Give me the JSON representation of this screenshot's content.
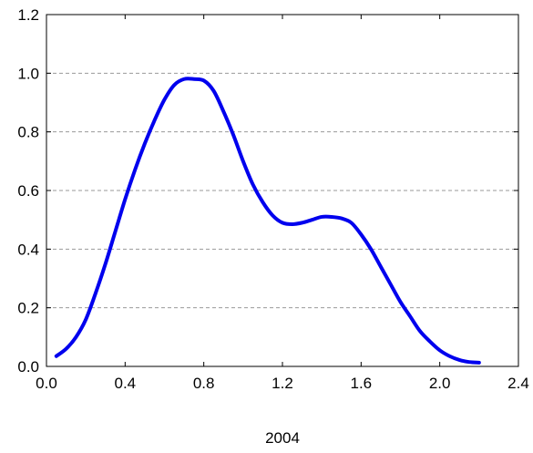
{
  "chart_data": {
    "type": "line",
    "title": "",
    "xlabel": "2004",
    "ylabel": "",
    "xlim": [
      0.0,
      2.4
    ],
    "ylim": [
      0.0,
      1.2
    ],
    "xticks": [
      "0.0",
      "0.4",
      "0.8",
      "1.2",
      "1.6",
      "2.0",
      "2.4"
    ],
    "yticks": [
      "0.0",
      "0.2",
      "0.4",
      "0.6",
      "0.8",
      "1.0",
      "1.2"
    ],
    "grid": "horizontal-dashed",
    "series": [
      {
        "color": "#0000ee",
        "x": [
          0.05,
          0.1,
          0.15,
          0.2,
          0.25,
          0.3,
          0.35,
          0.4,
          0.45,
          0.5,
          0.55,
          0.6,
          0.65,
          0.7,
          0.75,
          0.8,
          0.85,
          0.9,
          0.95,
          1.0,
          1.05,
          1.1,
          1.15,
          1.2,
          1.25,
          1.3,
          1.35,
          1.4,
          1.45,
          1.5,
          1.55,
          1.6,
          1.65,
          1.7,
          1.75,
          1.8,
          1.85,
          1.9,
          1.95,
          2.0,
          2.05,
          2.1,
          2.15,
          2.2
        ],
        "y": [
          0.035,
          0.06,
          0.1,
          0.16,
          0.25,
          0.35,
          0.46,
          0.57,
          0.67,
          0.76,
          0.84,
          0.91,
          0.96,
          0.98,
          0.98,
          0.975,
          0.94,
          0.87,
          0.79,
          0.7,
          0.62,
          0.56,
          0.515,
          0.49,
          0.485,
          0.49,
          0.5,
          0.51,
          0.51,
          0.505,
          0.49,
          0.45,
          0.4,
          0.34,
          0.28,
          0.22,
          0.17,
          0.12,
          0.085,
          0.055,
          0.035,
          0.022,
          0.015,
          0.013
        ]
      }
    ]
  }
}
